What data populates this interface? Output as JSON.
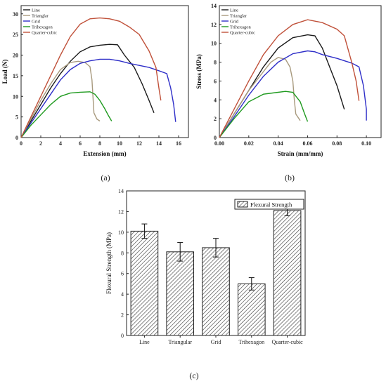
{
  "chart_data": [
    {
      "type": "line",
      "caption": "(a)",
      "xlabel": "Extension (mm)",
      "ylabel": "Load (N)",
      "xlim": [
        0,
        17
      ],
      "ylim": [
        0,
        32
      ],
      "xticks": [
        0,
        2,
        4,
        6,
        8,
        10,
        12,
        14,
        16
      ],
      "yticks": [
        0,
        5,
        10,
        15,
        20,
        25,
        30
      ],
      "legend_position": "top-left",
      "series": [
        {
          "name": "Line",
          "color": "#1a1a1a",
          "points": [
            [
              0,
              0
            ],
            [
              1,
              4
            ],
            [
              2,
              8
            ],
            [
              3,
              12
            ],
            [
              4,
              15.5
            ],
            [
              5,
              18.5
            ],
            [
              6,
              20.8
            ],
            [
              7,
              22
            ],
            [
              8,
              22.4
            ],
            [
              9,
              22.6
            ],
            [
              9.8,
              22.5
            ],
            [
              10.5,
              20
            ],
            [
              11.5,
              17
            ],
            [
              12.3,
              13
            ],
            [
              13,
              9
            ],
            [
              13.5,
              6
            ]
          ]
        },
        {
          "name": "Trianglar",
          "color": "#a89a7e",
          "points": [
            [
              0,
              0
            ],
            [
              1,
              4.5
            ],
            [
              2,
              9
            ],
            [
              3,
              13
            ],
            [
              4,
              16.5
            ],
            [
              5,
              18.2
            ],
            [
              5.8,
              18.5
            ],
            [
              6.5,
              18.2
            ],
            [
              7,
              17.2
            ],
            [
              7.2,
              14
            ],
            [
              7.3,
              10
            ],
            [
              7.4,
              6
            ],
            [
              7.7,
              4.5
            ],
            [
              8,
              4
            ]
          ]
        },
        {
          "name": "Grid",
          "color": "#2e2ec8",
          "points": [
            [
              0,
              0
            ],
            [
              1,
              3.5
            ],
            [
              2,
              7
            ],
            [
              3,
              10.5
            ],
            [
              4,
              14
            ],
            [
              5,
              16.5
            ],
            [
              6,
              18
            ],
            [
              7,
              18.6
            ],
            [
              8,
              19
            ],
            [
              9,
              19
            ],
            [
              10,
              18.6
            ],
            [
              11,
              18
            ],
            [
              12,
              17.5
            ],
            [
              13,
              17
            ],
            [
              14,
              16.2
            ],
            [
              14.8,
              15.5
            ],
            [
              15.2,
              12
            ],
            [
              15.5,
              8
            ],
            [
              15.7,
              3.8
            ]
          ]
        },
        {
          "name": "Trihexagon",
          "color": "#1f9a1f",
          "points": [
            [
              0,
              0
            ],
            [
              1,
              3
            ],
            [
              2,
              5.5
            ],
            [
              3,
              8
            ],
            [
              4,
              10
            ],
            [
              5,
              10.8
            ],
            [
              6,
              11
            ],
            [
              7,
              11.1
            ],
            [
              7.5,
              10.5
            ],
            [
              8,
              9
            ],
            [
              8.5,
              7
            ],
            [
              8.9,
              5.2
            ],
            [
              9.2,
              4
            ]
          ]
        },
        {
          "name": "Quarter-cubic",
          "color": "#c0513a",
          "points": [
            [
              0,
              0
            ],
            [
              1,
              5
            ],
            [
              2,
              10
            ],
            [
              3,
              15
            ],
            [
              4,
              20
            ],
            [
              5,
              24.5
            ],
            [
              6,
              27.5
            ],
            [
              7,
              28.8
            ],
            [
              8,
              29
            ],
            [
              9,
              28.8
            ],
            [
              10,
              28.2
            ],
            [
              11,
              26.8
            ],
            [
              12,
              25
            ],
            [
              13,
              21
            ],
            [
              13.7,
              17
            ],
            [
              14,
              12
            ],
            [
              14.2,
              9
            ]
          ]
        }
      ]
    },
    {
      "type": "line",
      "caption": "(b)",
      "xlabel": "Strain (mm/mm)",
      "ylabel": "Stress (MPa)",
      "xlim": [
        0,
        0.11
      ],
      "ylim": [
        0,
        14
      ],
      "xticks": [
        0,
        0.02,
        0.04,
        0.06,
        0.08,
        0.1
      ],
      "xticklabels": [
        "0.00",
        "0.02",
        "0.04",
        "0.06",
        "0.08",
        "0.10"
      ],
      "yticks": [
        0,
        2,
        4,
        6,
        8,
        10,
        12,
        14
      ],
      "legend_position": "top-left",
      "series": [
        {
          "name": "Line",
          "color": "#1a1a1a",
          "points": [
            [
              0,
              0
            ],
            [
              0.01,
              2.5
            ],
            [
              0.02,
              5
            ],
            [
              0.03,
              7.5
            ],
            [
              0.04,
              9.5
            ],
            [
              0.05,
              10.6
            ],
            [
              0.06,
              10.9
            ],
            [
              0.065,
              10.8
            ],
            [
              0.07,
              9.5
            ],
            [
              0.075,
              7.5
            ],
            [
              0.08,
              5.5
            ],
            [
              0.085,
              3
            ]
          ]
        },
        {
          "name": "Trianglar",
          "color": "#a89a7e",
          "points": [
            [
              0,
              0
            ],
            [
              0.01,
              2.5
            ],
            [
              0.02,
              5
            ],
            [
              0.03,
              7
            ],
            [
              0.035,
              8
            ],
            [
              0.04,
              8.5
            ],
            [
              0.045,
              8.3
            ],
            [
              0.048,
              7.5
            ],
            [
              0.05,
              6
            ],
            [
              0.051,
              4
            ],
            [
              0.052,
              2.5
            ],
            [
              0.055,
              1.8
            ]
          ]
        },
        {
          "name": "Grid",
          "color": "#2e2ec8",
          "points": [
            [
              0,
              0
            ],
            [
              0.01,
              2.2
            ],
            [
              0.02,
              4.5
            ],
            [
              0.03,
              6.5
            ],
            [
              0.04,
              8
            ],
            [
              0.05,
              8.9
            ],
            [
              0.06,
              9.2
            ],
            [
              0.065,
              9.1
            ],
            [
              0.07,
              8.8
            ],
            [
              0.08,
              8.4
            ],
            [
              0.09,
              7.9
            ],
            [
              0.095,
              7.5
            ],
            [
              0.098,
              5.5
            ],
            [
              0.1,
              3
            ],
            [
              0.1,
              1.8
            ]
          ]
        },
        {
          "name": "Trihexagon",
          "color": "#1f9a1f",
          "points": [
            [
              0,
              0
            ],
            [
              0.01,
              2
            ],
            [
              0.02,
              3.8
            ],
            [
              0.03,
              4.6
            ],
            [
              0.04,
              4.8
            ],
            [
              0.045,
              4.9
            ],
            [
              0.05,
              4.8
            ],
            [
              0.055,
              3.8
            ],
            [
              0.058,
              2.5
            ],
            [
              0.06,
              1.7
            ]
          ]
        },
        {
          "name": "Quarter-cubic",
          "color": "#c0513a",
          "points": [
            [
              0,
              0
            ],
            [
              0.01,
              3
            ],
            [
              0.02,
              6
            ],
            [
              0.03,
              8.8
            ],
            [
              0.04,
              10.8
            ],
            [
              0.05,
              12
            ],
            [
              0.06,
              12.5
            ],
            [
              0.07,
              12.2
            ],
            [
              0.08,
              11.5
            ],
            [
              0.085,
              10.8
            ],
            [
              0.09,
              8
            ],
            [
              0.093,
              6
            ],
            [
              0.095,
              3.9
            ]
          ]
        }
      ]
    },
    {
      "type": "bar",
      "caption": "(c)",
      "ylabel": "Flexural Strength (MPa)",
      "ylim": [
        0,
        14
      ],
      "yticks": [
        0,
        2,
        4,
        6,
        8,
        10,
        12,
        14
      ],
      "legend_position": "top-right",
      "categories": [
        "Line",
        "Triangular",
        "Grid",
        "Trihexagon",
        "Quarter-cubic"
      ],
      "series": [
        {
          "name": "Flexural Strength",
          "values": [
            10.1,
            8.1,
            8.5,
            5.0,
            12.1
          ],
          "errors": [
            0.7,
            0.9,
            0.9,
            0.6,
            0.5
          ]
        }
      ]
    }
  ]
}
